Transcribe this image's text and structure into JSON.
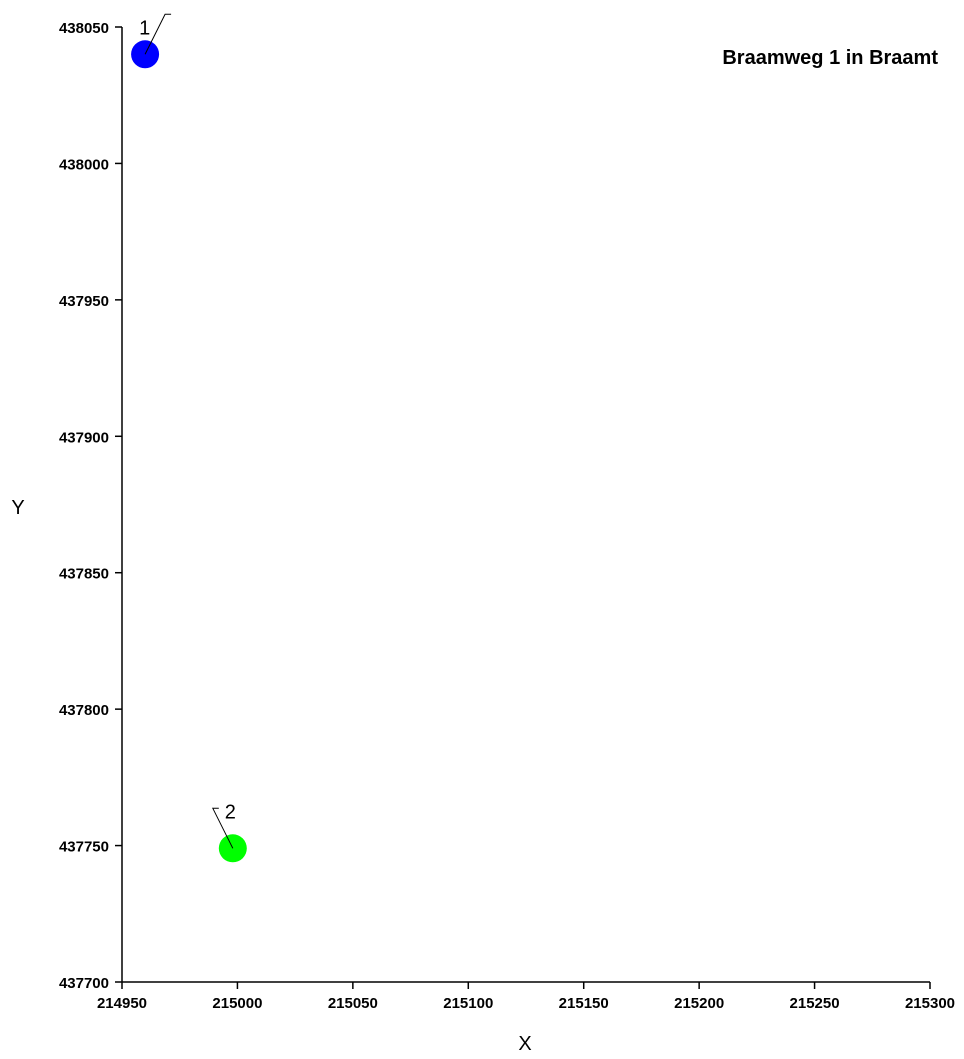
{
  "chart_data": {
    "type": "scatter",
    "title": "Braamweg 1 in Braamt",
    "xlabel": "X",
    "ylabel": "Y",
    "xlim": [
      214950,
      215300
    ],
    "ylim": [
      437700,
      438050
    ],
    "xticks": [
      "214950",
      "215000",
      "215050",
      "215100",
      "215150",
      "215200",
      "215250",
      "215300"
    ],
    "yticks": [
      "437700",
      "437750",
      "437800",
      "437850",
      "437900",
      "437950",
      "438000",
      "438050"
    ],
    "grid": false,
    "points": [
      {
        "label": "1",
        "x": 214960,
        "y": 438040,
        "color": "#0000ff",
        "label_side": "up-right"
      },
      {
        "label": "2",
        "x": 214998,
        "y": 437749,
        "color": "#00ff00",
        "label_side": "up-left"
      }
    ]
  }
}
